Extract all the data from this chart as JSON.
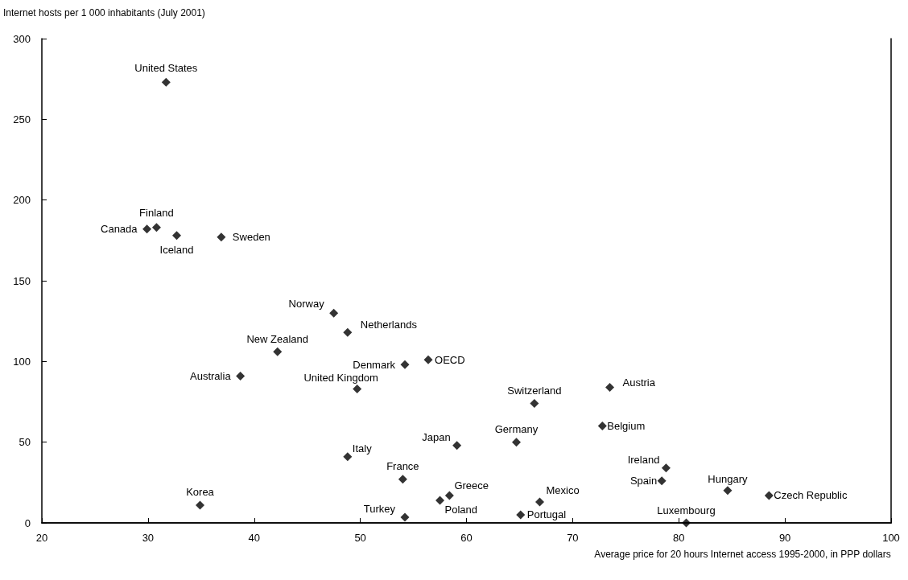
{
  "chart_data": {
    "type": "scatter",
    "ylabel": "Internet hosts per 1 000 inhabitants (July 2001)",
    "xlabel": "Average price for 20 hours Internet access 1995-2000, in PPP dollars",
    "x": [
      31.7,
      30.8,
      29.9,
      32.7,
      36.9,
      47.5,
      48.8,
      42.2,
      38.7,
      54.2,
      56.4,
      49.7,
      48.8,
      34.9,
      54.0,
      54.2,
      58.4,
      57.5,
      59.1,
      64.7,
      65.1,
      66.9,
      66.4,
      73.5,
      72.8,
      78.8,
      78.4,
      84.6,
      88.5,
      80.7
    ],
    "series": [
      {
        "color": "#000000",
        "values": [
          273,
          183,
          182,
          178,
          177,
          130,
          118,
          106,
          91,
          98,
          101,
          83,
          41,
          11,
          27,
          3.5,
          17,
          14,
          48,
          50,
          5,
          13,
          74,
          84,
          60,
          34,
          26,
          20,
          17,
          0
        ]
      }
    ],
    "annotations": [
      {
        "text": "United States",
        "x": 31.7,
        "y": 273
      },
      {
        "text": "Finland",
        "x": 30.8,
        "y": 183
      },
      {
        "text": "Canada",
        "x": 29.9,
        "y": 182
      },
      {
        "text": "Iceland",
        "x": 32.7,
        "y": 178
      },
      {
        "text": "Sweden",
        "x": 36.9,
        "y": 177
      },
      {
        "text": "Norway",
        "x": 47.5,
        "y": 130
      },
      {
        "text": "Netherlands",
        "x": 48.8,
        "y": 118
      },
      {
        "text": "New Zealand",
        "x": 42.2,
        "y": 106
      },
      {
        "text": "Australia",
        "x": 38.7,
        "y": 91
      },
      {
        "text": "Denmark",
        "x": 54.2,
        "y": 98
      },
      {
        "text": "OECD",
        "x": 56.4,
        "y": 101
      },
      {
        "text": "United Kingdom",
        "x": 49.7,
        "y": 83
      },
      {
        "text": "Italy",
        "x": 48.8,
        "y": 41
      },
      {
        "text": "Korea",
        "x": 34.9,
        "y": 11
      },
      {
        "text": "France",
        "x": 54.0,
        "y": 27
      },
      {
        "text": "Turkey",
        "x": 54.2,
        "y": 3.5
      },
      {
        "text": "Greece",
        "x": 58.4,
        "y": 17
      },
      {
        "text": "Poland",
        "x": 57.5,
        "y": 14
      },
      {
        "text": "Japan",
        "x": 59.1,
        "y": 48
      },
      {
        "text": "Germany",
        "x": 64.7,
        "y": 50
      },
      {
        "text": "Portugal",
        "x": 65.1,
        "y": 5
      },
      {
        "text": "Mexico",
        "x": 66.9,
        "y": 13
      },
      {
        "text": "Switzerland",
        "x": 66.4,
        "y": 74
      },
      {
        "text": "Austria",
        "x": 73.5,
        "y": 84
      },
      {
        "text": "Belgium",
        "x": 72.8,
        "y": 60
      },
      {
        "text": "Ireland",
        "x": 78.8,
        "y": 34
      },
      {
        "text": "Spain",
        "x": 78.4,
        "y": 26
      },
      {
        "text": "Hungary",
        "x": 84.6,
        "y": 20
      },
      {
        "text": "Czech Republic",
        "x": 88.5,
        "y": 17
      },
      {
        "text": "Luxembourg",
        "x": 80.7,
        "y": 0
      }
    ],
    "xlim": [
      20,
      100
    ],
    "xticks": [
      20,
      30,
      40,
      50,
      60,
      70,
      80,
      90,
      100
    ],
    "ylim": [
      0,
      300
    ],
    "yticks": [
      0,
      50,
      100,
      150,
      200,
      250,
      300
    ],
    "marker": "diamond",
    "grid": false
  }
}
